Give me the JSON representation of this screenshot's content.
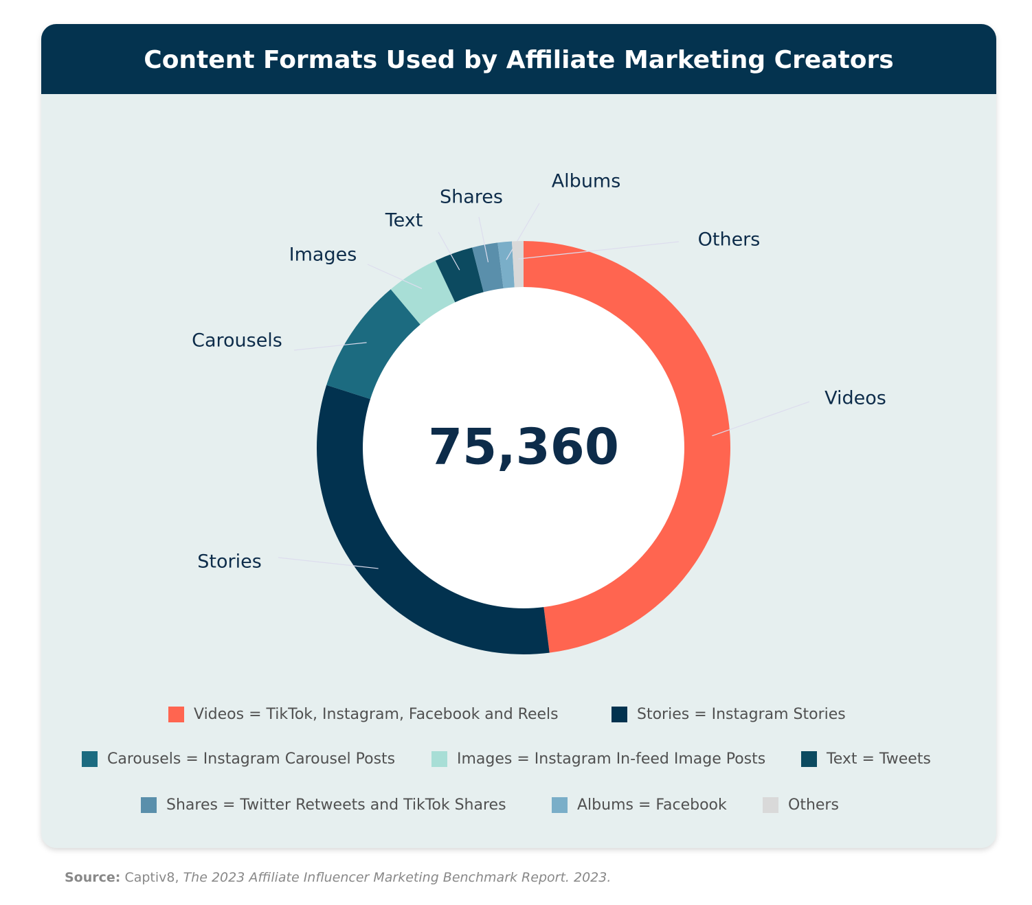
{
  "chart_data": {
    "type": "donut",
    "title": "Content Formats Used by Affiliate Marketing Creators",
    "total": {
      "value": 75360,
      "label": "75,360"
    },
    "categories": [
      "Videos",
      "Stories",
      "Carousels",
      "Images",
      "Text",
      "Shares",
      "Albums",
      "Others"
    ],
    "values": [
      48,
      31.9,
      9,
      4.1,
      3,
      2,
      1.1,
      0.9
    ],
    "colors": [
      "#ff6550",
      "#02324f",
      "#1c6b80",
      "#a8ded6",
      "#0c4a60",
      "#5a8fab",
      "#7aaec8",
      "#d9d9d9"
    ],
    "legend": [
      "Videos = TikTok, Instagram, Facebook and Reels",
      "Stories = Instagram Stories",
      "Carousels = Instagram Carousel Posts",
      "Images = Instagram In-feed Image Posts",
      "Text = Tweets",
      "Shares = Twitter Retweets and TikTok Shares",
      "Albums = Facebook",
      "Others"
    ],
    "source_label": "Source:",
    "source_publisher": "Captiv8,",
    "source_title": "The 2023 Affiliate Influencer Marketing Benchmark Report.",
    "source_year": "2023."
  }
}
